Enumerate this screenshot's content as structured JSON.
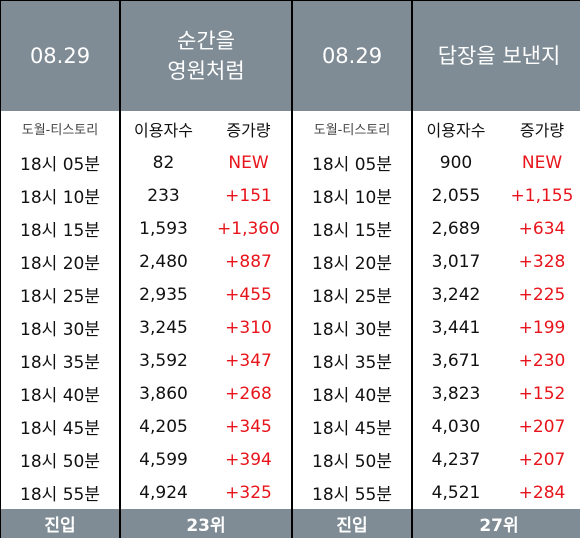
{
  "left": {
    "date": "08.29",
    "title": "순간을\n영원처럼",
    "source": "도월-티스토리",
    "col_users": "이용자수",
    "col_increase": "증가량",
    "rows": [
      {
        "time": "18시 05분",
        "users": "82",
        "increase": "NEW"
      },
      {
        "time": "18시 10분",
        "users": "233",
        "increase": "+151"
      },
      {
        "time": "18시 15분",
        "users": "1,593",
        "increase": "+1,360"
      },
      {
        "time": "18시 20분",
        "users": "2,480",
        "increase": "+887"
      },
      {
        "time": "18시 25분",
        "users": "2,935",
        "increase": "+455"
      },
      {
        "time": "18시 30분",
        "users": "3,245",
        "increase": "+310"
      },
      {
        "time": "18시 35분",
        "users": "3,592",
        "increase": "+347"
      },
      {
        "time": "18시 40분",
        "users": "3,860",
        "increase": "+268"
      },
      {
        "time": "18시 45분",
        "users": "4,205",
        "increase": "+345"
      },
      {
        "time": "18시 50분",
        "users": "4,599",
        "increase": "+394"
      },
      {
        "time": "18시 55분",
        "users": "4,924",
        "increase": "+325"
      }
    ],
    "footer_label": "진입",
    "footer_rank": "23위"
  },
  "right": {
    "date": "08.29",
    "title": "답장을 보낸지",
    "source": "도월-티스토리",
    "col_users": "이용자수",
    "col_increase": "증가량",
    "rows": [
      {
        "time": "18시 05분",
        "users": "900",
        "increase": "NEW"
      },
      {
        "time": "18시 10분",
        "users": "2,055",
        "increase": "+1,155"
      },
      {
        "time": "18시 15분",
        "users": "2,689",
        "increase": "+634"
      },
      {
        "time": "18시 20분",
        "users": "3,017",
        "increase": "+328"
      },
      {
        "time": "18시 25분",
        "users": "3,242",
        "increase": "+225"
      },
      {
        "time": "18시 30분",
        "users": "3,441",
        "increase": "+199"
      },
      {
        "time": "18시 35분",
        "users": "3,671",
        "increase": "+230"
      },
      {
        "time": "18시 40분",
        "users": "3,823",
        "increase": "+152"
      },
      {
        "time": "18시 45분",
        "users": "4,030",
        "increase": "+207"
      },
      {
        "time": "18시 50분",
        "users": "4,237",
        "increase": "+207"
      },
      {
        "time": "18시 55분",
        "users": "4,521",
        "increase": "+284"
      }
    ],
    "footer_label": "진입",
    "footer_rank": "27위"
  },
  "colors": {
    "header_bg": "#7f8c95",
    "increase": "#e8141b",
    "text": "#111111"
  }
}
